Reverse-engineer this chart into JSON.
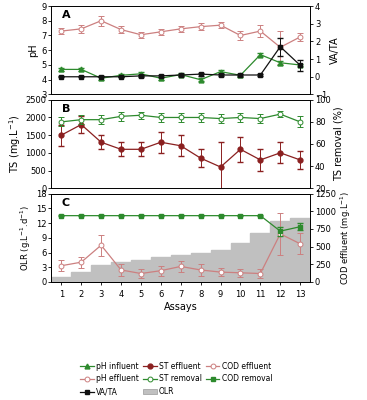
{
  "assays": [
    1,
    2,
    3,
    4,
    5,
    6,
    7,
    8,
    9,
    10,
    11,
    12,
    13
  ],
  "pH_influent": [
    4.7,
    4.7,
    4.1,
    4.3,
    4.4,
    4.1,
    4.35,
    4.0,
    4.55,
    4.3,
    5.7,
    5.15,
    5.0
  ],
  "pH_influent_err": [
    0.1,
    0.1,
    0.15,
    0.1,
    0.1,
    0.1,
    0.1,
    0.1,
    0.1,
    0.1,
    0.1,
    0.15,
    0.1
  ],
  "pH_effluent": [
    7.3,
    7.45,
    8.0,
    7.4,
    7.05,
    7.25,
    7.45,
    7.6,
    7.7,
    7.0,
    7.3,
    6.2,
    6.9
  ],
  "pH_effluent_err": [
    0.2,
    0.25,
    0.35,
    0.25,
    0.2,
    0.2,
    0.2,
    0.25,
    0.2,
    0.3,
    0.4,
    1.1,
    0.25
  ],
  "VA_TA": [
    0.0,
    0.0,
    0.0,
    0.0,
    0.05,
    0.05,
    0.1,
    0.15,
    0.1,
    0.1,
    0.1,
    1.7,
    0.65
  ],
  "VA_TA_err": [
    0.02,
    0.02,
    0.02,
    0.02,
    0.05,
    0.05,
    0.05,
    0.08,
    0.05,
    0.05,
    0.05,
    0.5,
    0.3
  ],
  "TS_effluent": [
    1500,
    1800,
    1300,
    1100,
    1100,
    1300,
    1200,
    850,
    600,
    1100,
    800,
    1000,
    800
  ],
  "TS_effluent_err": [
    300,
    250,
    200,
    200,
    200,
    300,
    300,
    250,
    700,
    350,
    300,
    300,
    250
  ],
  "TS_removal": [
    80,
    82,
    82,
    85,
    86,
    84,
    84,
    84,
    83,
    84,
    83,
    87,
    80
  ],
  "TS_removal_err": [
    4,
    4,
    4,
    4,
    3,
    4,
    4,
    4,
    4,
    4,
    4,
    3,
    5
  ],
  "OLR": [
    1.0,
    2.0,
    3.5,
    4.0,
    4.5,
    5.0,
    5.5,
    6.0,
    6.5,
    8.0,
    10.0,
    12.5,
    13.0
  ],
  "COD_effluent": [
    230,
    280,
    520,
    170,
    120,
    160,
    220,
    170,
    140,
    130,
    120,
    680,
    540
  ],
  "COD_effluent_err": [
    80,
    80,
    150,
    80,
    60,
    70,
    80,
    80,
    60,
    60,
    70,
    300,
    150
  ],
  "COD_removal": [
    100,
    100,
    100,
    100,
    100,
    100,
    100,
    100,
    100,
    100,
    100,
    93,
    95
  ],
  "COD_removal_err": [
    0.3,
    0.3,
    0.3,
    0.3,
    0.3,
    0.3,
    0.3,
    0.3,
    0.3,
    0.3,
    0.3,
    2.0,
    1.5
  ],
  "color_green": "#2d8a2d",
  "color_red_dark": "#8b2020",
  "color_pink": "#cc8080",
  "color_black": "#111111",
  "color_gray_fill": "#c0c0c0",
  "panel_A_label": "A",
  "panel_B_label": "B",
  "panel_C_label": "C"
}
